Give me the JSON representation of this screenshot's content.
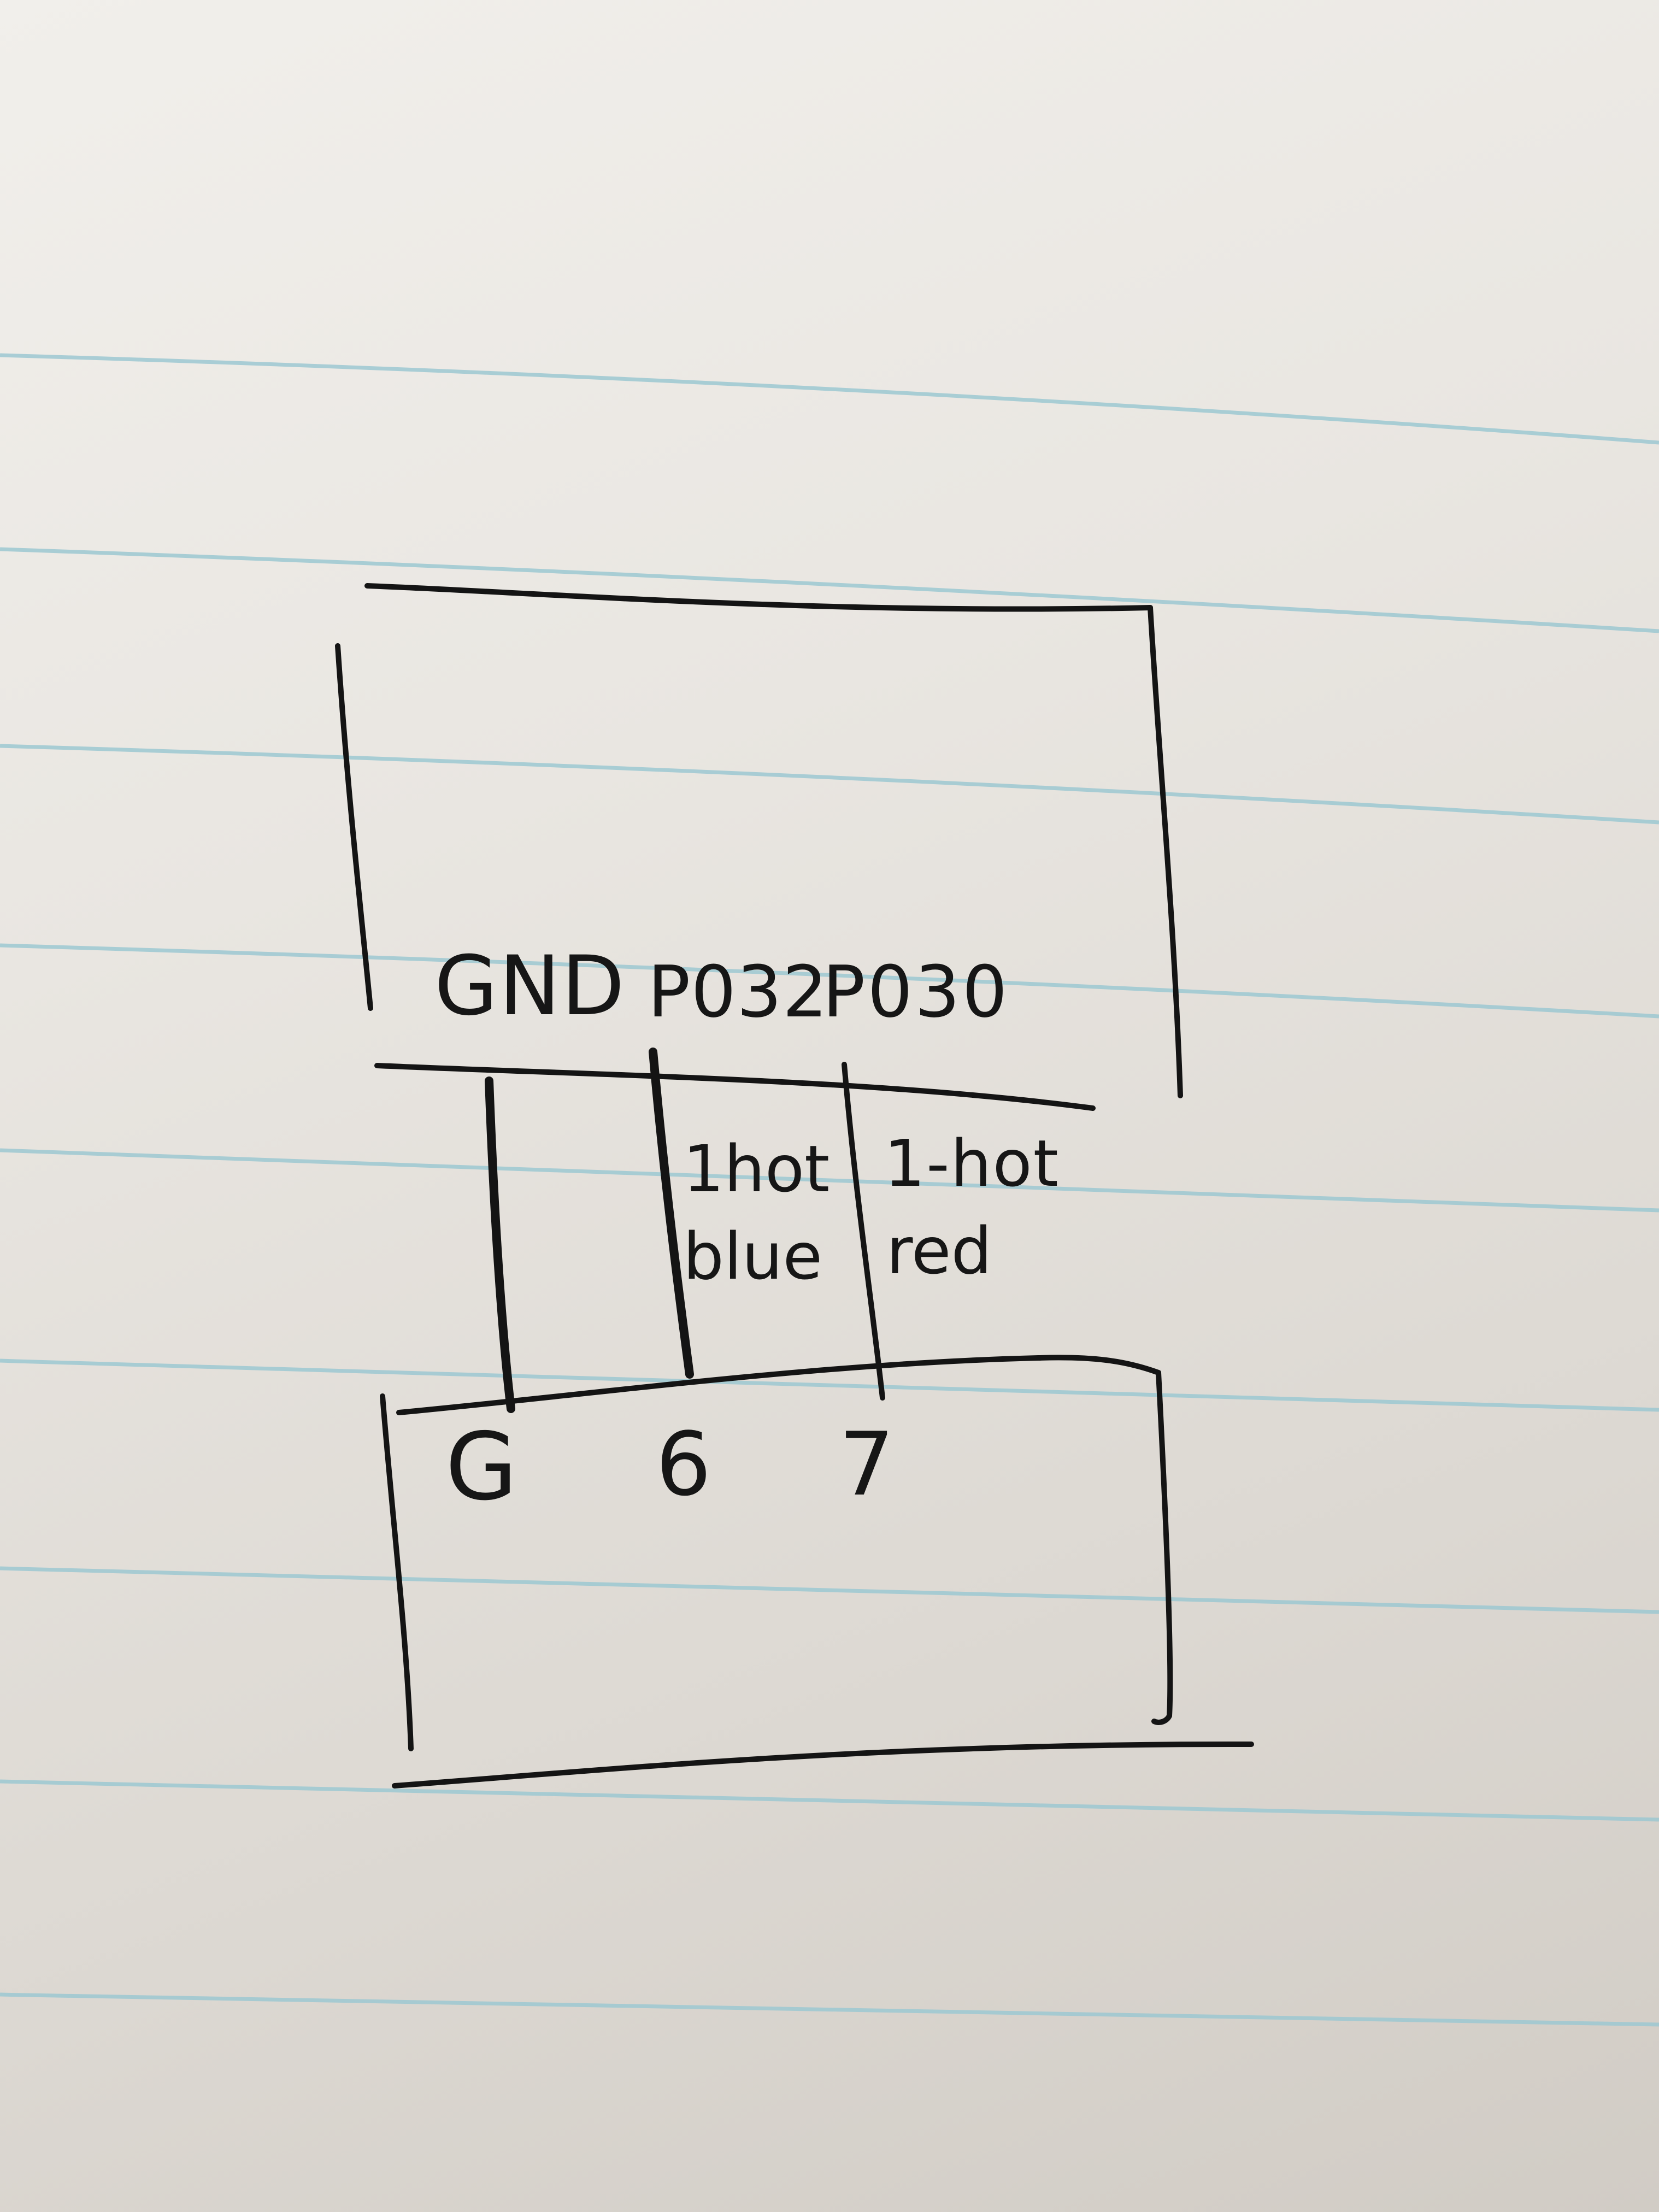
{
  "top_board": {
    "pins": [
      "GND",
      "P032",
      "P030"
    ]
  },
  "wires": {
    "middle": {
      "line1": "1hot",
      "line2": "blue"
    },
    "right": {
      "line1": "1-hot",
      "line2": "red"
    }
  },
  "bottom_board": {
    "pins": [
      "G",
      "6",
      "7"
    ]
  },
  "colors": {
    "ink": "#141414",
    "paper": "#ebe8e3",
    "rule_line": "#9cc8d1"
  }
}
